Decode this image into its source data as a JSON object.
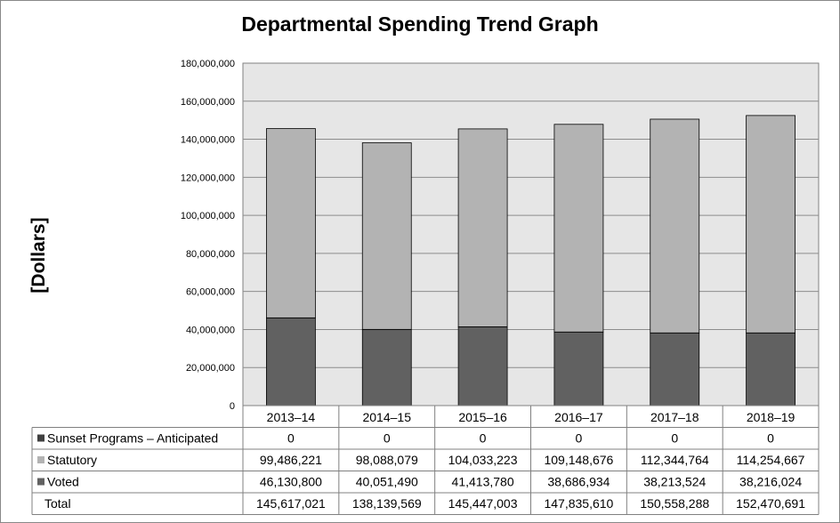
{
  "chart_data": {
    "type": "bar",
    "stacked": true,
    "title": "Departmental Spending Trend Graph",
    "ylabel": "[Dollars]",
    "xlabel": "",
    "ylim": [
      0,
      180000000
    ],
    "yticks": [
      0,
      20000000,
      40000000,
      60000000,
      80000000,
      100000000,
      120000000,
      140000000,
      160000000,
      180000000
    ],
    "ytick_labels": [
      "0",
      "20,000,000",
      "40,000,000",
      "60,000,000",
      "80,000,000",
      "100,000,000",
      "120,000,000",
      "140,000,000",
      "160,000,000",
      "180,000,000"
    ],
    "categories": [
      "2013–14",
      "2014–15",
      "2015–16",
      "2016–17",
      "2017–18",
      "2018–19"
    ],
    "series": [
      {
        "name": "Sunset Programs – Anticipated",
        "color": "#404040",
        "values": [
          0,
          0,
          0,
          0,
          0,
          0
        ],
        "labels": [
          "0",
          "0",
          "0",
          "0",
          "0",
          "0"
        ]
      },
      {
        "name": "Statutory",
        "color": "#b3b3b3",
        "values": [
          99486221,
          98088079,
          104033223,
          109148676,
          112344764,
          114254667
        ],
        "labels": [
          "99,486,221",
          "98,088,079",
          "104,033,223",
          "109,148,676",
          "112,344,764",
          "114,254,667"
        ]
      },
      {
        "name": "Voted",
        "color": "#616161",
        "values": [
          46130800,
          40051490,
          41413780,
          38686934,
          38213524,
          38216024
        ],
        "labels": [
          "46,130,800",
          "40,051,490",
          "41,413,780",
          "38,686,934",
          "38,213,524",
          "38,216,024"
        ]
      }
    ],
    "total": {
      "name": "Total",
      "values": [
        145617021,
        138139569,
        145447003,
        147835610,
        150558288,
        152470691
      ],
      "labels": [
        "145,617,021",
        "138,139,569",
        "145,447,003",
        "147,835,610",
        "150,558,288",
        "152,470,691"
      ]
    },
    "grid": true,
    "plot_background": "#e6e6e6",
    "legend": "data-table-below"
  }
}
